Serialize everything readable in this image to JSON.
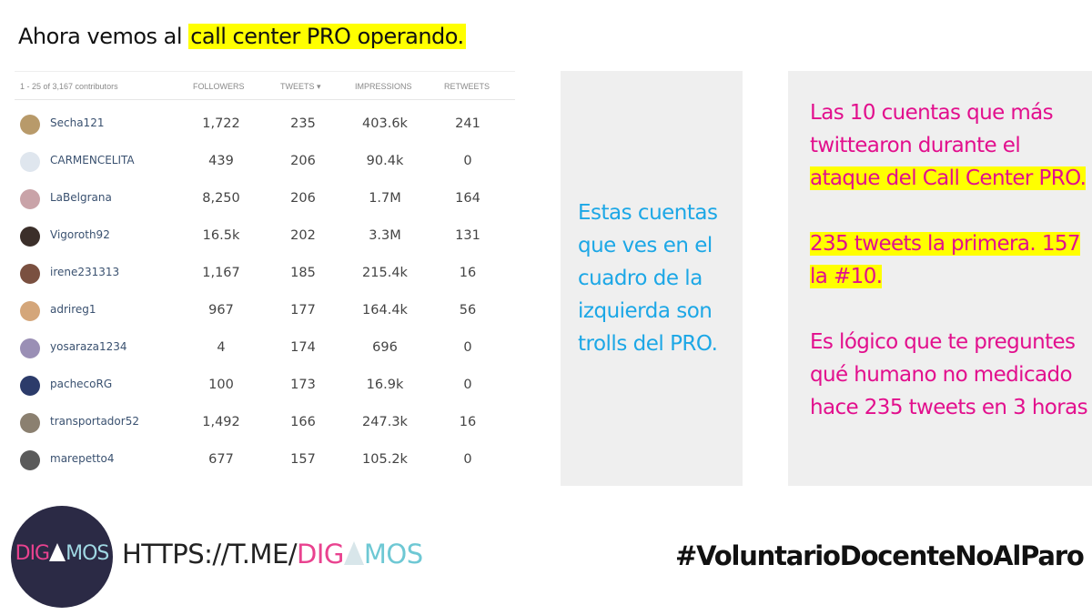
{
  "headline": {
    "prefix": "Ahora vemos al ",
    "highlight": "call center PRO operando."
  },
  "table": {
    "headers": {
      "range": "1 - 25 of 3,167 contributors",
      "followers": "FOLLOWERS",
      "tweets": "TWEETS ▾",
      "impressions": "IMPRESSIONS",
      "retweets": "RETWEETS"
    },
    "rows": [
      {
        "name": "Secha121",
        "followers": "1,722",
        "tweets": "235",
        "impressions": "403.6k",
        "retweets": "241",
        "avatar_color": "#b89a6a"
      },
      {
        "name": "CARMENCELITA",
        "followers": "439",
        "tweets": "206",
        "impressions": "90.4k",
        "retweets": "0",
        "avatar_color": "#dfe6ee"
      },
      {
        "name": "LaBelgrana",
        "followers": "8,250",
        "tweets": "206",
        "impressions": "1.7M",
        "retweets": "164",
        "avatar_color": "#c9a3a8"
      },
      {
        "name": "Vigoroth92",
        "followers": "16.5k",
        "tweets": "202",
        "impressions": "3.3M",
        "retweets": "131",
        "avatar_color": "#3b2f2a"
      },
      {
        "name": "irene231313",
        "followers": "1,167",
        "tweets": "185",
        "impressions": "215.4k",
        "retweets": "16",
        "avatar_color": "#7a5040"
      },
      {
        "name": "adrireg1",
        "followers": "967",
        "tweets": "177",
        "impressions": "164.4k",
        "retweets": "56",
        "avatar_color": "#d4a67a"
      },
      {
        "name": "yosaraza1234",
        "followers": "4",
        "tweets": "174",
        "impressions": "696",
        "retweets": "0",
        "avatar_color": "#9a8fb5"
      },
      {
        "name": "pachecoRG",
        "followers": "100",
        "tweets": "173",
        "impressions": "16.9k",
        "retweets": "0",
        "avatar_color": "#2c3b6a"
      },
      {
        "name": "transportador52",
        "followers": "1,492",
        "tweets": "166",
        "impressions": "247.3k",
        "retweets": "16",
        "avatar_color": "#8b8070"
      },
      {
        "name": "marepetto4",
        "followers": "677",
        "tweets": "157",
        "impressions": "105.2k",
        "retweets": "0",
        "avatar_color": "#5a5a5a"
      }
    ]
  },
  "middle_box": {
    "text": "Estas cuentas que ves en el cuadro de la izquierda son trolls del PRO."
  },
  "right_box": {
    "p1": "Las 10 cuentas que más twittearon durante el",
    "p1_highlight": "ataque del Call Center PRO.",
    "p2_highlight": "235  tweets la primera. 157 la #10.",
    "p3": "Es lógico que te preguntes qué humano no medicado hace 235 tweets en 3 horas"
  },
  "footer": {
    "logo": {
      "a": "DIG",
      "b": "MOS"
    },
    "url": {
      "a": "HTTPS://T.ME/",
      "b": "DIG",
      "c": "MOS"
    },
    "hashtag": "#VoluntarioDocenteNoAlParo"
  },
  "colors": {
    "highlight": "#ffff00",
    "cyan_text": "#1ca7e6",
    "magenta_text": "#e20f8d",
    "panel_grey": "#efefef",
    "logo_bg": "#2b2a45"
  }
}
